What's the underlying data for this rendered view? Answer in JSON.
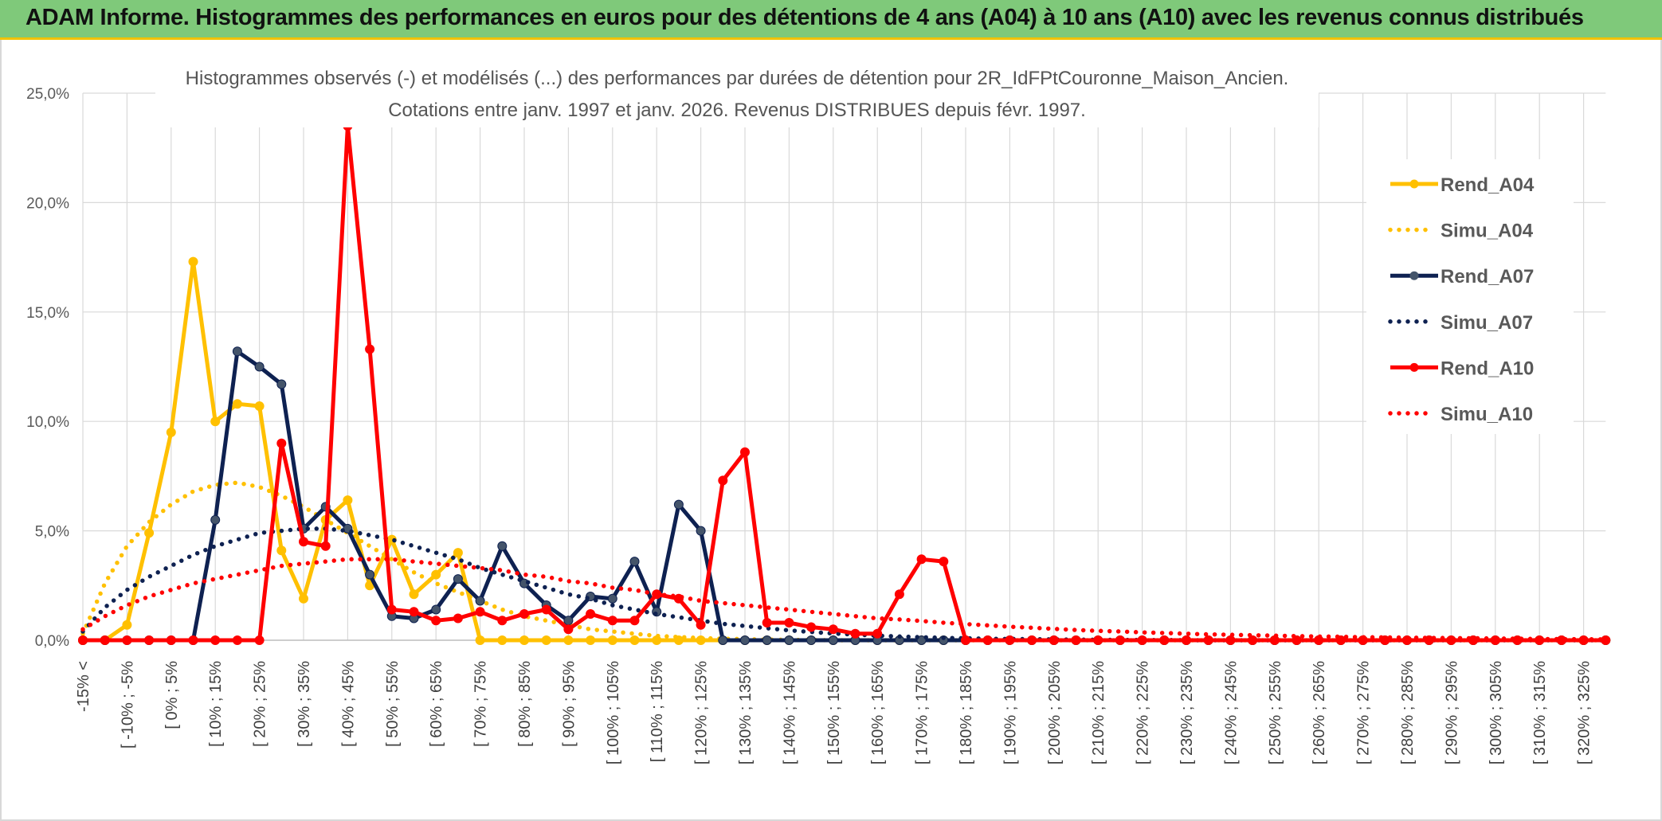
{
  "banner": {
    "title": "ADAM Informe. Histogrammes des performances en euros pour des détentions de 4 ans (A04) à 10 ans (A10) avec les revenus connus distribués"
  },
  "colors": {
    "A04": "#ffc000",
    "A07": "#0e2151",
    "A10": "#ff0000",
    "grid": "#d9d9d9",
    "banner": "#7fc97a"
  },
  "chart_data": {
    "type": "line",
    "title": "Histogrammes observés (-) et modélisés (...) des performances par durées de détention pour 2R_IdFPtCouronne_Maison_Ancien.",
    "subtitle": "Cotations entre janv. 1997 et janv. 2026. Revenus DISTRIBUES depuis févr. 1997.",
    "ylim": [
      0,
      25
    ],
    "yticks": [
      "0,0%",
      "5,0%",
      "10,0%",
      "15,0%",
      "20,0%",
      "25,0%"
    ],
    "legend_position": "right",
    "grid": true,
    "x_tick_labels": [
      "-15% <",
      "[ -10% ; -5%",
      "[ 0% ; 5%",
      "[ 10% ; 15%",
      "[ 20% ; 25%",
      "[ 30% ; 35%",
      "[ 40% ; 45%",
      "[ 50% ; 55%",
      "[ 60% ; 65%",
      "[ 70% ; 75%",
      "[ 80% ; 85%",
      "[ 90% ; 95%",
      "[ 100% ; 105%",
      "[ 110% ; 115%",
      "[ 120% ; 125%",
      "[ 130% ; 135%",
      "[ 140% ; 145%",
      "[ 150% ; 155%",
      "[ 160% ; 165%",
      "[ 170% ; 175%",
      "[ 180% ; 185%",
      "[ 190% ; 195%",
      "[ 200% ; 205%",
      "[ 210% ; 215%",
      "[ 220% ; 225%",
      "[ 230% ; 235%",
      "[ 240% ; 245%",
      "[ 250% ; 255%",
      "[ 260% ; 265%",
      "[ 270% ; 275%",
      "[ 280% ; 285%",
      "[ 290% ; 295%",
      "[ 300% ; 305%",
      "[ 310% ; 315%",
      "[ 320% ; 325%"
    ],
    "series": [
      {
        "name": "Rend_A04",
        "style": "solid",
        "color": "#ffc000",
        "values": [
          0,
          0,
          0.7,
          4.9,
          9.5,
          17.3,
          10.0,
          10.8,
          10.7,
          4.1,
          1.9,
          5.5,
          6.4,
          2.5,
          4.6,
          2.1,
          3.0,
          4.0,
          0,
          0,
          0,
          0,
          0,
          0,
          0,
          0,
          0,
          0,
          0,
          0,
          0,
          0,
          0,
          0,
          0,
          0,
          0,
          0,
          0,
          0,
          0,
          0,
          0,
          0,
          0,
          0,
          0,
          0,
          0,
          0,
          0,
          0,
          0,
          0,
          0,
          0,
          0,
          0,
          0,
          0,
          0,
          0,
          0,
          0,
          0,
          0,
          0,
          0,
          0,
          0
        ]
      },
      {
        "name": "Simu_A04",
        "style": "dotted",
        "color": "#ffc000",
        "values": [
          0.3,
          2.6,
          4.3,
          5.4,
          6.2,
          6.8,
          7.1,
          7.2,
          7.0,
          6.6,
          6.1,
          5.5,
          4.9,
          4.3,
          3.7,
          3.1,
          2.6,
          2.2,
          1.8,
          1.4,
          1.1,
          0.9,
          0.7,
          0.5,
          0.4,
          0.3,
          0.2,
          0.15,
          0.1,
          0.07,
          0.05,
          0.03,
          0.02,
          0.01,
          0,
          0,
          0,
          0,
          0,
          0,
          0,
          0,
          0,
          0,
          0,
          0,
          0,
          0,
          0,
          0,
          0,
          0,
          0,
          0,
          0,
          0,
          0,
          0,
          0,
          0,
          0,
          0,
          0,
          0,
          0,
          0,
          0,
          0,
          0,
          0
        ]
      },
      {
        "name": "Rend_A07",
        "style": "solid",
        "color": "#0e2151",
        "values": [
          0,
          0,
          0,
          0,
          0,
          0,
          5.5,
          13.2,
          12.5,
          11.7,
          5.1,
          6.1,
          5.1,
          3.0,
          1.1,
          1.0,
          1.4,
          2.8,
          1.8,
          4.3,
          2.6,
          1.6,
          0.9,
          2.0,
          1.9,
          3.6,
          1.3,
          6.2,
          5.0,
          0,
          0,
          0,
          0,
          0,
          0,
          0,
          0,
          0,
          0,
          0,
          0,
          0,
          0,
          0,
          0,
          0,
          0,
          0,
          0,
          0,
          0,
          0,
          0,
          0,
          0,
          0,
          0,
          0,
          0,
          0,
          0,
          0,
          0,
          0,
          0,
          0,
          0,
          0,
          0,
          0
        ]
      },
      {
        "name": "Simu_A07",
        "style": "dotted",
        "color": "#0e2151",
        "values": [
          0.4,
          1.5,
          2.3,
          2.9,
          3.4,
          3.9,
          4.3,
          4.6,
          4.9,
          5.0,
          5.1,
          5.1,
          5.0,
          4.8,
          4.6,
          4.3,
          4.0,
          3.7,
          3.3,
          3.0,
          2.7,
          2.4,
          2.1,
          1.9,
          1.6,
          1.4,
          1.2,
          1.05,
          0.9,
          0.75,
          0.65,
          0.55,
          0.45,
          0.38,
          0.31,
          0.26,
          0.21,
          0.17,
          0.14,
          0.11,
          0.09,
          0.07,
          0.06,
          0.05,
          0.04,
          0.03,
          0.02,
          0.02,
          0.01,
          0.01,
          0,
          0,
          0,
          0,
          0,
          0,
          0,
          0,
          0,
          0,
          0,
          0,
          0,
          0,
          0,
          0,
          0,
          0,
          0,
          0
        ]
      },
      {
        "name": "Rend_A10",
        "style": "solid",
        "color": "#ff0000",
        "values": [
          0,
          0,
          0,
          0,
          0,
          0,
          0,
          0,
          0,
          9.0,
          4.5,
          4.3,
          23.5,
          13.3,
          1.4,
          1.3,
          0.9,
          1.0,
          1.3,
          0.9,
          1.2,
          1.4,
          0.5,
          1.2,
          0.9,
          0.9,
          2.1,
          1.9,
          0.7,
          7.3,
          8.6,
          0.8,
          0.8,
          0.6,
          0.5,
          0.3,
          0.3,
          2.1,
          3.7,
          3.6,
          0,
          0,
          0,
          0,
          0,
          0,
          0,
          0,
          0,
          0,
          0,
          0,
          0,
          0,
          0,
          0,
          0,
          0,
          0,
          0,
          0,
          0,
          0,
          0,
          0,
          0,
          0,
          0,
          0,
          0
        ]
      },
      {
        "name": "Simu_A10",
        "style": "dotted",
        "color": "#ff0000",
        "values": [
          0.5,
          1.1,
          1.6,
          2.0,
          2.3,
          2.6,
          2.8,
          3.0,
          3.2,
          3.4,
          3.5,
          3.6,
          3.7,
          3.7,
          3.7,
          3.6,
          3.5,
          3.4,
          3.3,
          3.2,
          3.0,
          2.9,
          2.7,
          2.6,
          2.4,
          2.3,
          2.1,
          2.0,
          1.8,
          1.7,
          1.6,
          1.5,
          1.4,
          1.3,
          1.2,
          1.1,
          1.0,
          0.95,
          0.88,
          0.8,
          0.74,
          0.68,
          0.62,
          0.57,
          0.52,
          0.47,
          0.43,
          0.4,
          0.36,
          0.33,
          0.3,
          0.27,
          0.25,
          0.23,
          0.21,
          0.19,
          0.17,
          0.16,
          0.14,
          0.13,
          0.12,
          0.11,
          0.1,
          0.09,
          0.08,
          0.07,
          0.06,
          0.05,
          0.05,
          0.04
        ]
      }
    ]
  }
}
